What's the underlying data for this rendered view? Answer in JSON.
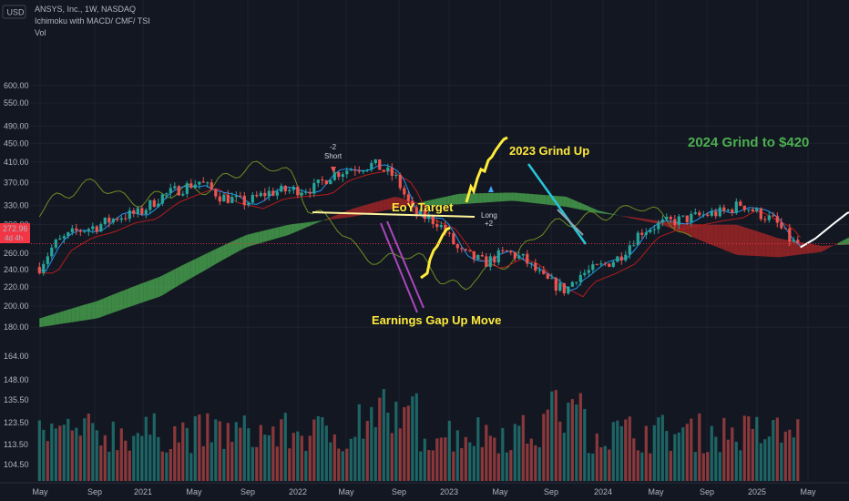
{
  "header": {
    "currency": "USD",
    "symbol_line": "ANSYS, Inc., 1W, NASDAQ",
    "indicators_line": "Ichimoku with MACD/ CMF/ TSI",
    "volume_line": "Vol"
  },
  "price_axis": {
    "ticks": [
      "600.00",
      "550.00",
      "490.00",
      "450.00",
      "410.00",
      "370.00",
      "330.00",
      "300.00",
      "260.00",
      "240.00",
      "220.00",
      "200.00",
      "180.00",
      "164.00",
      "148.00",
      "135.50",
      "123.50",
      "113.50",
      "104.50"
    ],
    "current_price": "272.96",
    "countdown": "4d 4h",
    "current_color": "#f23645"
  },
  "time_axis": {
    "labels": [
      "May",
      "Sep",
      "2021",
      "May",
      "Sep",
      "2022",
      "May",
      "Sep",
      "2023",
      "May",
      "Sep",
      "2024",
      "May",
      "Sep",
      "2025",
      "May"
    ]
  },
  "annotations": {
    "short_signal": "-2",
    "short_label": "Short",
    "long_label": "Long",
    "long_signal": "+2",
    "eoy_target": "EoY Target",
    "grind_2023": "2023 Grind Up",
    "grind_2024": "2024 Grind to $420",
    "earnings_gap": "Earnings Gap Up Move"
  },
  "colors": {
    "up": "#26a69a",
    "down": "#ef5350",
    "cloud_bull": "#4caf50",
    "cloud_bear": "#c62828",
    "yellow": "#ffeb3b",
    "cyan": "#26c6da",
    "magenta": "#ab47bc",
    "white": "#ffffff",
    "green_text": "#4caf50"
  },
  "chart_data": {
    "type": "candlestick",
    "ticker": "ANSYS, Inc.",
    "interval": "1W",
    "exchange": "NASDAQ",
    "y_scale": "log",
    "last_price": 272.96,
    "price_path": [
      [
        2020.33,
        243
      ],
      [
        2020.4,
        272
      ],
      [
        2020.5,
        290
      ],
      [
        2020.6,
        298
      ],
      [
        2020.7,
        312
      ],
      [
        2020.8,
        318
      ],
      [
        2020.9,
        345
      ],
      [
        2021.0,
        360
      ],
      [
        2021.08,
        372
      ],
      [
        2021.18,
        345
      ],
      [
        2021.3,
        335
      ],
      [
        2021.4,
        352
      ],
      [
        2021.5,
        356
      ],
      [
        2021.62,
        360
      ],
      [
        2021.7,
        385
      ],
      [
        2021.8,
        398
      ],
      [
        2021.9,
        405
      ],
      [
        2022.0,
        380
      ],
      [
        2022.08,
        320
      ],
      [
        2022.2,
        303
      ],
      [
        2022.3,
        262
      ],
      [
        2022.42,
        248
      ],
      [
        2022.52,
        262
      ],
      [
        2022.6,
        253
      ],
      [
        2022.7,
        228
      ],
      [
        2022.8,
        216
      ],
      [
        2022.85,
        232
      ],
      [
        2022.95,
        242
      ],
      [
        2023.05,
        255
      ],
      [
        2023.15,
        290
      ],
      [
        2023.25,
        302
      ],
      [
        2023.35,
        308
      ],
      [
        2023.45,
        315
      ],
      [
        2023.55,
        320
      ],
      [
        2023.62,
        333
      ],
      [
        2023.7,
        318
      ],
      [
        2023.78,
        305
      ],
      [
        2023.86,
        275
      ],
      [
        2023.9,
        273
      ]
    ],
    "projection_2024": [
      [
        2023.9,
        268
      ],
      [
        2023.97,
        280
      ],
      [
        2024.05,
        300
      ],
      [
        2024.12,
        318
      ],
      [
        2024.2,
        325
      ],
      [
        2024.28,
        322
      ],
      [
        2024.36,
        338
      ],
      [
        2024.44,
        355
      ],
      [
        2024.5,
        372
      ],
      [
        2024.56,
        400
      ],
      [
        2024.62,
        418
      ]
    ],
    "eoy_target_level": 290,
    "volume_ylim": [
      95,
      165
    ]
  }
}
